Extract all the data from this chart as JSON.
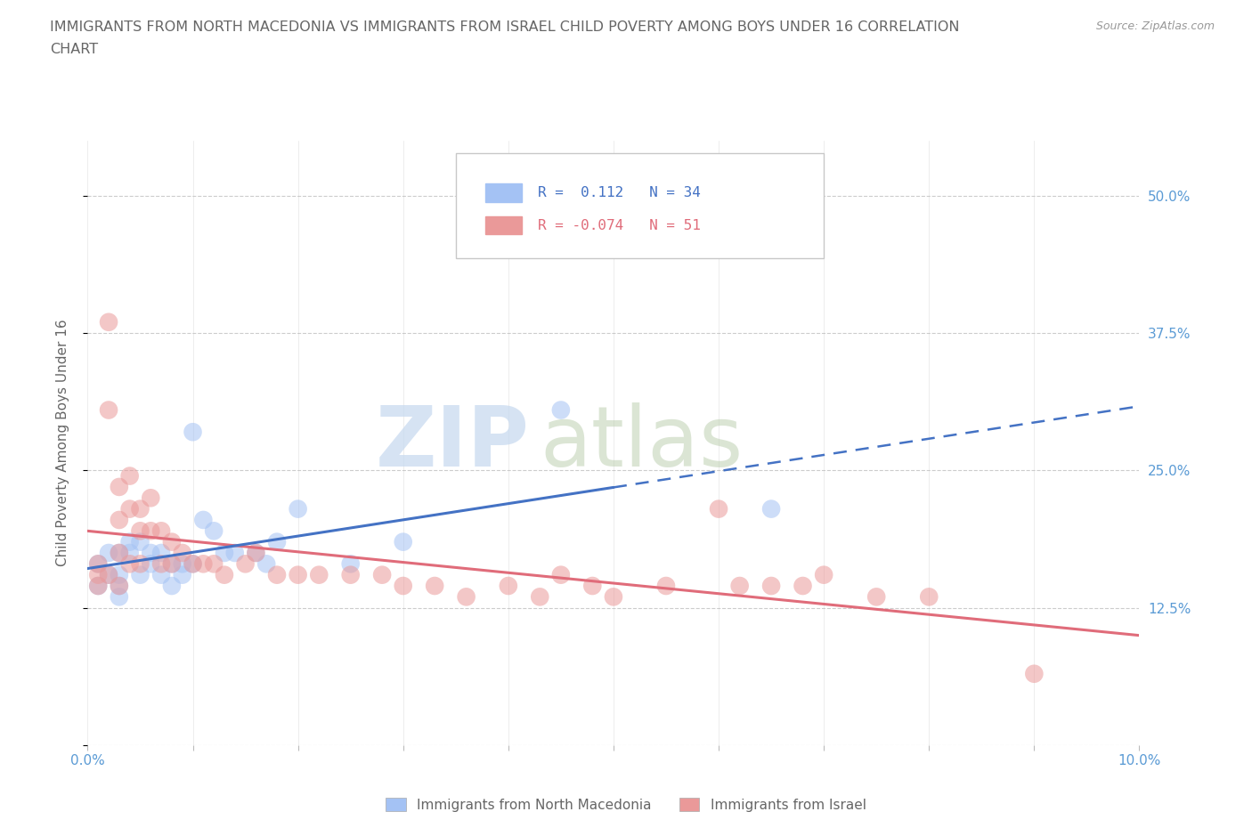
{
  "title_line1": "IMMIGRANTS FROM NORTH MACEDONIA VS IMMIGRANTS FROM ISRAEL CHILD POVERTY AMONG BOYS UNDER 16 CORRELATION",
  "title_line2": "CHART",
  "source_text": "Source: ZipAtlas.com",
  "ylabel": "Child Poverty Among Boys Under 16",
  "xlim": [
    0.0,
    0.1
  ],
  "ylim": [
    0.0,
    0.55
  ],
  "xticks": [
    0.0,
    0.01,
    0.02,
    0.03,
    0.04,
    0.05,
    0.06,
    0.07,
    0.08,
    0.09,
    0.1
  ],
  "xticklabels": [
    "0.0%",
    "",
    "",
    "",
    "",
    "",
    "",
    "",
    "",
    "",
    "10.0%"
  ],
  "yticks": [
    0.0,
    0.125,
    0.25,
    0.375,
    0.5
  ],
  "yticklabels_right": [
    "",
    "12.5%",
    "25.0%",
    "37.5%",
    "50.0%"
  ],
  "watermark_zip": "ZIP",
  "watermark_atlas": "atlas",
  "color_macedonia": "#a4c2f4",
  "color_israel": "#ea9999",
  "color_mac_line": "#4472c4",
  "color_isr_line": "#e06c7a",
  "legend_label_mac": "Immigrants from North Macedonia",
  "legend_label_isr": "Immigrants from Israel",
  "bg_color": "#ffffff",
  "grid_color": "#c0c0c0",
  "title_color": "#666666",
  "axis_label_color": "#666666",
  "tick_label_color": "#5b9bd5",
  "macedonia_x": [
    0.001,
    0.001,
    0.002,
    0.002,
    0.003,
    0.003,
    0.003,
    0.003,
    0.004,
    0.004,
    0.005,
    0.005,
    0.006,
    0.006,
    0.007,
    0.007,
    0.008,
    0.008,
    0.009,
    0.009,
    0.01,
    0.01,
    0.011,
    0.012,
    0.013,
    0.014,
    0.016,
    0.017,
    0.018,
    0.02,
    0.025,
    0.03,
    0.045,
    0.065
  ],
  "macedonia_y": [
    0.165,
    0.145,
    0.175,
    0.155,
    0.175,
    0.155,
    0.145,
    0.135,
    0.185,
    0.175,
    0.185,
    0.155,
    0.175,
    0.165,
    0.175,
    0.155,
    0.165,
    0.145,
    0.165,
    0.155,
    0.285,
    0.165,
    0.205,
    0.195,
    0.175,
    0.175,
    0.175,
    0.165,
    0.185,
    0.215,
    0.165,
    0.185,
    0.305,
    0.215
  ],
  "israel_x": [
    0.001,
    0.001,
    0.001,
    0.002,
    0.002,
    0.002,
    0.003,
    0.003,
    0.003,
    0.003,
    0.004,
    0.004,
    0.004,
    0.005,
    0.005,
    0.005,
    0.006,
    0.006,
    0.007,
    0.007,
    0.008,
    0.008,
    0.009,
    0.01,
    0.011,
    0.012,
    0.013,
    0.015,
    0.016,
    0.018,
    0.02,
    0.022,
    0.025,
    0.028,
    0.03,
    0.033,
    0.036,
    0.04,
    0.043,
    0.045,
    0.048,
    0.05,
    0.055,
    0.06,
    0.062,
    0.065,
    0.068,
    0.07,
    0.075,
    0.08,
    0.09
  ],
  "israel_y": [
    0.165,
    0.155,
    0.145,
    0.385,
    0.305,
    0.155,
    0.235,
    0.205,
    0.175,
    0.145,
    0.245,
    0.215,
    0.165,
    0.215,
    0.195,
    0.165,
    0.225,
    0.195,
    0.195,
    0.165,
    0.185,
    0.165,
    0.175,
    0.165,
    0.165,
    0.165,
    0.155,
    0.165,
    0.175,
    0.155,
    0.155,
    0.155,
    0.155,
    0.155,
    0.145,
    0.145,
    0.135,
    0.145,
    0.135,
    0.155,
    0.145,
    0.135,
    0.145,
    0.215,
    0.145,
    0.145,
    0.145,
    0.155,
    0.135,
    0.135,
    0.065
  ]
}
